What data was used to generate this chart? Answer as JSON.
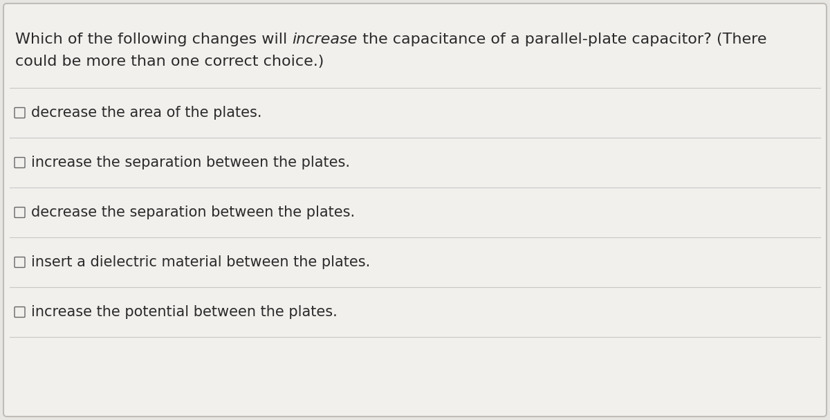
{
  "title_line1_before_italic": "Which of the following changes will ",
  "title_line1_italic": "increase",
  "title_line1_after_italic": " the capacitance of a parallel-plate capacitor? (There",
  "title_line2": "could be more than one correct choice.)",
  "options": [
    "decrease the area of the plates.",
    "increase the separation between the plates.",
    "decrease the separation between the plates.",
    "insert a dielectric material between the plates.",
    "increase the potential between the plates."
  ],
  "bg_color": "#e8e6e2",
  "card_color": "#f2f0ed",
  "text_color": "#2a2a2a",
  "line_color": "#c8c8c8",
  "checkbox_color": "#666666",
  "title_fontsize": 16,
  "option_fontsize": 15,
  "figsize": [
    12.0,
    6.07
  ],
  "dpi": 100
}
